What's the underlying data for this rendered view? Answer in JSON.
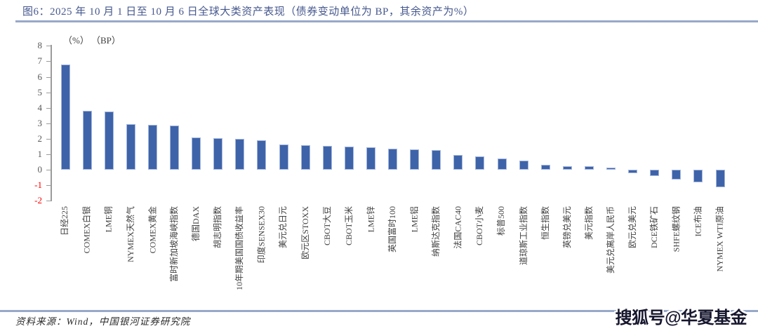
{
  "figure": {
    "title": "图6：2025 年 10 月 1 日至 10 月 6 日全球大类资产表现（债券变动单位为 BP，其余资产为%）",
    "source": "资料来源：Wind，中国银河证券研究院",
    "watermark": "搜狐号@华夏基金"
  },
  "chart_data": {
    "type": "bar",
    "title": "2025 年 10 月 1 日至 10 月 6 日全球大类资产表现",
    "unit_labels": [
      "（%）",
      "（BP）"
    ],
    "categories": [
      "日经225",
      "COMEX白银",
      "LME铜",
      "NYMEX天然气",
      "COMEX黄金",
      "富时新加坡海峡指数",
      "德国DAX",
      "胡志明指数",
      "10年期美国国债收益率",
      "印度SENSEX30",
      "美元兑日元",
      "欧元区STOXX",
      "CBOT大豆",
      "CBOT玉米",
      "LME锌",
      "英国富时100",
      "LME铝",
      "纳斯达克指数",
      "法国CAC40",
      "CBOT小麦",
      "标普500",
      "道琼斯工业指数",
      "恒生指数",
      "英镑兑美元",
      "美元指数",
      "美元兑离岸人民币",
      "欧元兑美元",
      "DCE铁矿石",
      "SHFE螺纹钢",
      "ICE布油",
      "NYMEX WTI原油"
    ],
    "values": [
      6.8,
      3.8,
      3.78,
      2.95,
      2.9,
      2.85,
      2.08,
      2.05,
      2.0,
      1.9,
      1.65,
      1.58,
      1.55,
      1.5,
      1.45,
      1.36,
      1.3,
      1.25,
      0.95,
      0.85,
      0.72,
      0.6,
      0.3,
      0.23,
      0.23,
      0.15,
      -0.23,
      -0.42,
      -0.65,
      -0.83,
      -1.15
    ],
    "ylim": [
      -2,
      8
    ],
    "ytick_step": 1,
    "yticks": [
      8,
      7,
      6,
      5,
      4,
      3,
      2,
      1,
      0,
      -1,
      -2
    ],
    "grid": false,
    "legend": false,
    "bar_color": "#3E63A9",
    "bar_border_color": "#A6B8DC",
    "negative_tick_color": "#FF0000",
    "title_color": "#46588E",
    "rule_color": "#98A8C8"
  }
}
